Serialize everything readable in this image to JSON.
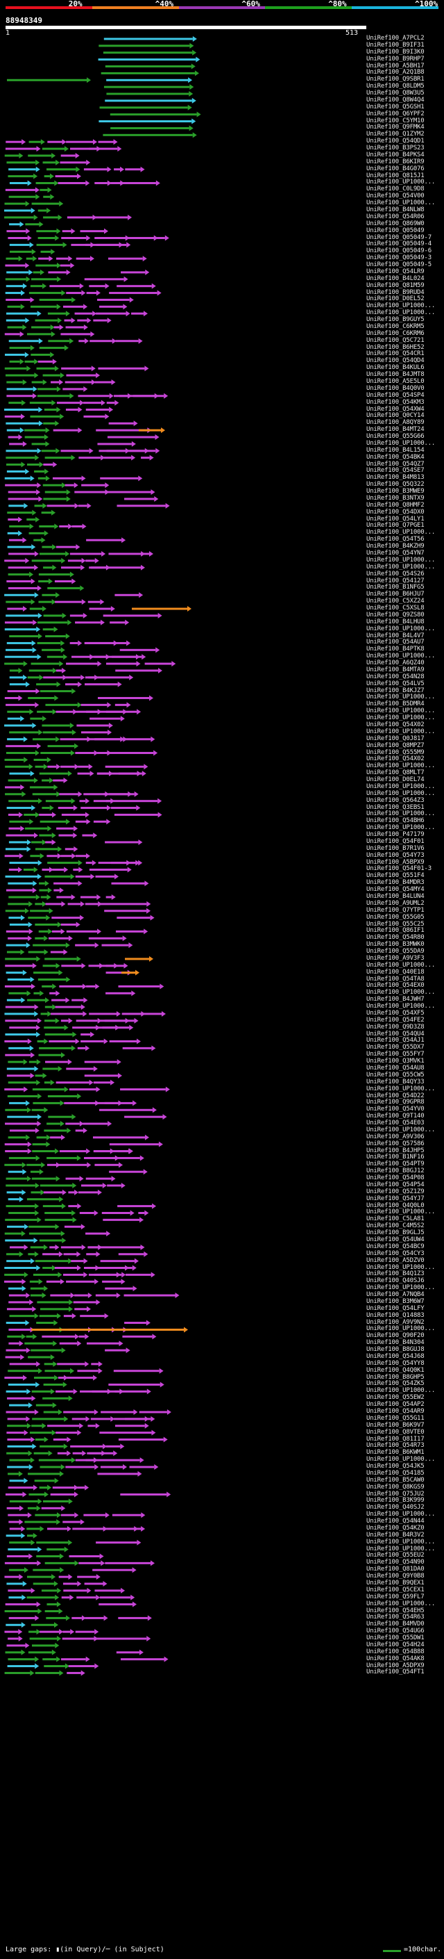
{
  "legend": {
    "segments": [
      {
        "label": "20%",
        "color": "#e6101e"
      },
      {
        "label": "^40%",
        "color": "#f08022"
      },
      {
        "label": "^60%",
        "color": "#9a38b4"
      },
      {
        "label": "^80%",
        "color": "#1ea01e"
      },
      {
        "label": "^100%",
        "color": "#1ab4dc"
      }
    ]
  },
  "query": {
    "name": "88948349",
    "start": "1",
    "end": "513"
  },
  "colors": {
    "cyan": "#3ec8e6",
    "green": "#2aa02a",
    "magenta": "#c845d8",
    "orange": "#f08c1e"
  },
  "hits": [
    "UniRef100_A7PCL2",
    "UniRef100_B9IF31",
    "UniRef100_B9I3K0",
    "UniRef100_B9RHP7",
    "UniRef100_A5BH17",
    "UniRef100_A2Q1B8",
    "UniRef100_Q9SBR1",
    "UniRef100_Q8LDM5",
    "UniRef100_Q8W3U5",
    "UniRef100_Q8W4Q4",
    "UniRef100_Q5GSH1",
    "UniRef100_Q6YPF2",
    "UniRef100_C5YM10",
    "UniRef100_Q9FMK4",
    "UniRef100_Q1ZYM2",
    "UniRef100_Q54QD1",
    "UniRef100_B3PS23",
    "UniRef100_B4PKS4",
    "UniRef100_B6KIR9",
    "UniRef100_B4G076",
    "UniRef100_Q815J1",
    "UniRef100_UP1000...",
    "UniRef100_C0L9D8",
    "UniRef100_Q54V00",
    "UniRef100_UP1000...",
    "UniRef100_B4NLW8",
    "UniRef100_Q54R06",
    "UniRef100_Q869W0",
    "UniRef100_Q05049",
    "UniRef100_Q05049-7",
    "UniRef100_Q05049-4",
    "UniRef100_Q05049-6",
    "UniRef100_Q05049-3",
    "UniRef100_Q05049-5",
    "UniRef100_Q54LR9",
    "UniRef100_B4L024",
    "UniRef100_Q81M59",
    "UniRef100_B9RUD4",
    "UniRef100_D0EL52",
    "UniRef100_UP1000...",
    "UniRef100_UP1000...",
    "UniRef100_B9GUY5",
    "UniRef100_C6KRM5",
    "UniRef100_C6KRM6",
    "UniRef100_Q5C721",
    "UniRef100_B6HE52",
    "UniRef100_Q54CR1",
    "UniRef100_Q54QD4",
    "UniRef100_B4KUL6",
    "UniRef100_B4JMT8",
    "UniRef100_A5E5L0",
    "UniRef100_B4Q0V0",
    "UniRef100_Q54SP4",
    "UniRef100_Q54KM3",
    "UniRef100_Q54XW4",
    "UniRef100_Q0CY14",
    "UniRef100_A8QY89",
    "UniRef100_B4MT24",
    "UniRef100_Q55G66",
    "UniRef100_UP1000...",
    "UniRef100_B4L154",
    "UniRef100_Q54BK4",
    "UniRef100_Q54QZ7",
    "UniRef100_Q54SE7",
    "UniRef100_B4M813",
    "UniRef100_Q5Q322",
    "UniRef100_B3MWE9",
    "UniRef100_B3NTX9",
    "UniRef100_Q8HMF2",
    "UniRef100_Q54DX0",
    "UniRef100_Q54LY1",
    "UniRef100_Q7PGE1",
    "UniRef100_UP1000...",
    "UniRef100_Q54T56",
    "UniRef100_B4KZH9",
    "UniRef100_Q54YN7",
    "UniRef100_UP1000...",
    "UniRef100_UP1000...",
    "UniRef100_Q54S26",
    "UniRef100_Q54127",
    "UniRef100_B1NFG5",
    "UniRef100_B6HJU7",
    "UniRef100_C5XZ24",
    "UniRef100_C5XSL8",
    "UniRef100_Q9ZS80",
    "UniRef100_B4LHU8",
    "UniRef100_UP1000...",
    "UniRef100_B4L4V7",
    "UniRef100_Q54AU7",
    "UniRef100_B4PTK8",
    "UniRef100_UP1000...",
    "UniRef100_A6QZ40",
    "UniRef100_B4MTA9",
    "UniRef100_Q54N28",
    "UniRef100_Q54LV5",
    "UniRef100_B4KJZ7",
    "UniRef100_UP1000...",
    "UniRef100_B5DMR4",
    "UniRef100_UP1000...",
    "UniRef100_UP1000...",
    "UniRef100_Q54X02",
    "UniRef100_UP1000...",
    "UniRef100_Q0J817",
    "UniRef100_Q8MPZ7",
    "UniRef100_Q555M9",
    "UniRef100_Q54X02",
    "UniRef100_UP1000...",
    "UniRef100_Q8MLT7",
    "UniRef100_D0EL74",
    "UniRef100_UP1000...",
    "UniRef100_UP1000...",
    "UniRef100_Q564Z3",
    "UniRef100_Q3EBS1",
    "UniRef100_UP1000...",
    "UniRef100_Q54BH6",
    "UniRef100_UP1000...",
    "UniRef100_P47179",
    "UniRef100_Q54F01",
    "UniRef100_B7R1V6",
    "UniRef100_Q54Y73",
    "UniRef100_A5BPX9",
    "UniRef100_Q54F01-3",
    "UniRef100_Q551F4",
    "UniRef100_B4MDR3",
    "UniRef100_Q54MY4",
    "UniRef100_B4LUN4",
    "UniRef100_A9UML2",
    "UniRef100_Q7YTP1",
    "UniRef100_Q55G05",
    "UniRef100_Q55C25",
    "UniRef100_Q86IF1",
    "UniRef100_Q54R80",
    "UniRef100_B3MWK0",
    "UniRef100_Q55DA9",
    "UniRef100_A9V3F3",
    "UniRef100_UP1000...",
    "UniRef100_Q40E18",
    "UniRef100_Q54TA8",
    "UniRef100_Q54EX0",
    "UniRef100_UP1000...",
    "UniRef100_B4JWH7",
    "UniRef100_UP1000...",
    "UniRef100_Q54XF5",
    "UniRef100_Q54FE2",
    "UniRef100_Q9D3Z8",
    "UniRef100_Q54QU4",
    "UniRef100_Q54AJ1",
    "UniRef100_Q55DX7",
    "UniRef100_Q55FY7",
    "UniRef100_Q3MVK1",
    "UniRef100_Q54AU8",
    "UniRef100_Q55CW5",
    "UniRef100_B4QY33",
    "UniRef100_UP1000...",
    "UniRef100_Q54D22",
    "UniRef100_Q9GPR8",
    "UniRef100_Q54YV0",
    "UniRef100_Q9T140",
    "UniRef100_Q54E03",
    "UniRef100_UP1000...",
    "UniRef100_A9V306",
    "UniRef100_Q57586",
    "UniRef100_B4JHP5",
    "UniRef100_B1NF16",
    "UniRef100_Q54PT9",
    "UniRef100_B8GJ12",
    "UniRef100_Q54P08",
    "UniRef100_Q54P54",
    "UniRef100_Q5Z1Z9",
    "UniRef100_Q54YJ7",
    "UniRef100_Q4Q0L0",
    "UniRef100_UP1000...",
    "UniRef100_C5LA81",
    "UniRef100_C4M5S2",
    "UniRef100_B9GLJ5",
    "UniRef100_Q54UW4",
    "UniRef100_Q54BC9",
    "UniRef100_Q54CY3",
    "UniRef100_A5DZV0",
    "UniRef100_UP1000...",
    "UniRef100_B4Q1Z3",
    "UniRef100_Q40SJ6",
    "UniRef100_UP1000...",
    "UniRef100_A7NQB4",
    "UniRef100_B3M6W7",
    "UniRef100_Q54LFY",
    "UniRef100_Q14883",
    "UniRef100_A9V9N2",
    "UniRef100_UP1000...",
    "UniRef100_Q90F20",
    "UniRef100_B4N304",
    "UniRef100_B8GUJ8",
    "UniRef100_Q54J68",
    "UniRef100_Q54YY8",
    "UniRef100_Q4Q0K1",
    "UniRef100_B8GHP5",
    "UniRef100_Q54ZK5",
    "UniRef100_UP1000...",
    "UniRef100_Q55EW2",
    "UniRef100_Q54AP2",
    "UniRef100_Q54AR9",
    "UniRef100_Q55G11",
    "UniRef100_B6K9V7",
    "UniRef100_Q8VTE0",
    "UniRef100_Q81I17",
    "UniRef100_Q54R73",
    "UniRef100_B6KWM1",
    "UniRef100_UP1000...",
    "UniRef100_Q54JK5",
    "UniRef100_Q54185",
    "UniRef100_B5CAW0",
    "UniRef100_Q8KGS9",
    "UniRef100_Q75JU2",
    "UniRef100_B3K999",
    "UniRef100_Q40SJ2",
    "UniRef100_UP1000...",
    "UniRef100_Q54N44",
    "UniRef100_Q54KZ0",
    "UniRef100_B4R3V2",
    "UniRef100_UP1000...",
    "UniRef100_UP1000...",
    "UniRef100_Q55EU2",
    "UniRef100_Q54N90",
    "UniRef100_Q81DA0",
    "UniRef100_Q9Y0B8",
    "UniRef100_B9QEX1",
    "UniRef100_Q5CEX1",
    "UniRef100_Q59FL7",
    "UniRef100_UP1000...",
    "UniRef100_Q54EH5",
    "UniRef100_Q54R63",
    "UniRef100_B4MVD0",
    "UniRef100_Q54UG6",
    "UniRef100_Q55DW1",
    "UniRef100_Q54H24",
    "UniRef100_Q54B88",
    "UniRef100_Q54AK8",
    "UniRef100_A5DPX9",
    "UniRef100_Q54FT1"
  ],
  "footer": {
    "gaps_label": "Large gaps: ▮(in Query)/─ (in Subject)",
    "scale_label": "=100char."
  }
}
